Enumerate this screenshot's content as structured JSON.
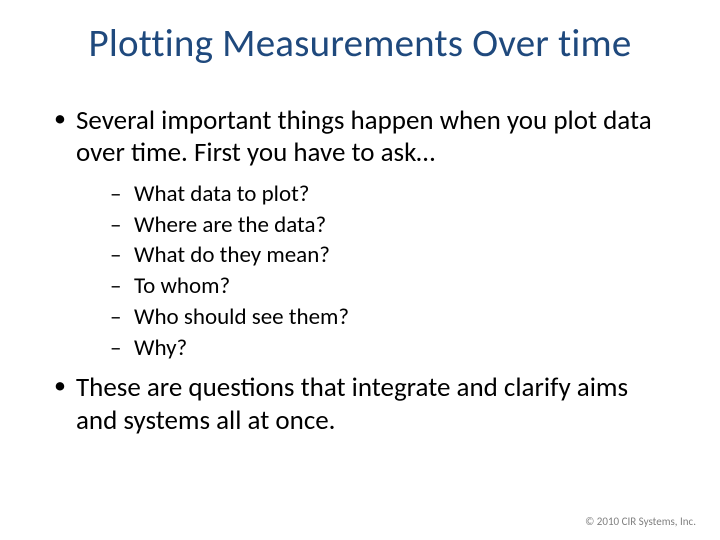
{
  "slide": {
    "title": "Plotting Measurements Over time",
    "title_color": "#1f497d",
    "title_fontsize": 39,
    "body_color": "#000000",
    "bullet_fontsize": 27,
    "sub_bullet_fontsize": 23,
    "background_color": "#ffffff",
    "bullets": [
      {
        "text": "Several important things happen when you plot data over time. First you have to ask…",
        "subs": [
          "What data to plot?",
          "Where are the data?",
          "What do they mean?",
          "To whom?",
          "Who should see them?",
          "Why?"
        ]
      },
      {
        "text": "These are questions that integrate and clarify aims and systems all at once.",
        "subs": []
      }
    ],
    "footer": "© 2010 CIR Systems, Inc.",
    "footer_color": "#808080",
    "footer_fontsize": 11
  }
}
